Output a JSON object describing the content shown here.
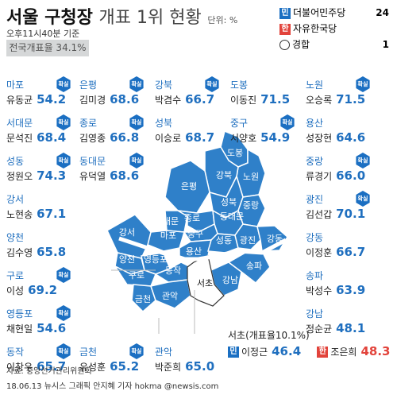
{
  "header": {
    "title_bold": "서울 구청장",
    "title_rest": "개표 1위 현황",
    "unit": "단위: %",
    "time": "오후11시40분 기준",
    "rate_label": "전국개표율 34.1%"
  },
  "legend": [
    {
      "badge": "민",
      "party": "더불어민주당",
      "count": "24",
      "color": "#1b6fc2"
    },
    {
      "badge": "한",
      "party": "자유한국당",
      "count": "",
      "color": "#e2433b"
    },
    {
      "badge": "",
      "party": "경합",
      "count": "1",
      "color": ""
    }
  ],
  "sure_label": "확실",
  "districts": [
    {
      "name": "마포",
      "candidate": "유동균",
      "pct": "54.2",
      "sure": true
    },
    {
      "name": "은평",
      "candidate": "김미경",
      "pct": "68.6",
      "sure": true
    },
    {
      "name": "강북",
      "candidate": "박겸수",
      "pct": "66.7",
      "sure": true
    },
    {
      "name": "도봉",
      "candidate": "이동진",
      "pct": "71.5",
      "sure": false
    },
    {
      "name": "노원",
      "candidate": "오승록",
      "pct": "71.5",
      "sure": true
    },
    {
      "name": "서대문",
      "candidate": "문석진",
      "pct": "68.4",
      "sure": true
    },
    {
      "name": "종로",
      "candidate": "김영종",
      "pct": "66.8",
      "sure": true
    },
    {
      "name": "성북",
      "candidate": "이승로",
      "pct": "68.7",
      "sure": false
    },
    {
      "name": "중구",
      "candidate": "서양호",
      "pct": "54.9",
      "sure": true
    },
    {
      "name": "용산",
      "candidate": "성장현",
      "pct": "64.6",
      "sure": false
    },
    {
      "name": "성동",
      "candidate": "정원오",
      "pct": "74.3",
      "sure": true
    },
    {
      "name": "동대문",
      "candidate": "유덕열",
      "pct": "68.6",
      "sure": true
    },
    {
      "name": "중랑",
      "candidate": "류경기",
      "pct": "66.0",
      "sure": true
    },
    {
      "name": "강서",
      "candidate": "노현송",
      "pct": "67.1",
      "sure": false
    },
    {
      "name": "광진",
      "candidate": "김선갑",
      "pct": "70.1",
      "sure": true
    },
    {
      "name": "양천",
      "candidate": "김수영",
      "pct": "65.8",
      "sure": false
    },
    {
      "name": "강동",
      "candidate": "이정훈",
      "pct": "66.7",
      "sure": false
    },
    {
      "name": "구로",
      "candidate": "이성",
      "pct": "69.2",
      "sure": true
    },
    {
      "name": "송파",
      "candidate": "박성수",
      "pct": "63.9",
      "sure": false
    },
    {
      "name": "영등포",
      "candidate": "채현일",
      "pct": "54.6",
      "sure": true
    },
    {
      "name": "강남",
      "candidate": "정순균",
      "pct": "48.1",
      "sure": false
    },
    {
      "name": "동작",
      "candidate": "이창우",
      "pct": "65.7",
      "sure": true
    },
    {
      "name": "금천",
      "candidate": "유성훈",
      "pct": "65.2",
      "sure": true
    },
    {
      "name": "관악",
      "candidate": "박준희",
      "pct": "65.0",
      "sure": false
    }
  ],
  "seocho": {
    "title": "서초(개표율10.1%)",
    "dem_badge": "민",
    "dem_name": "이정근",
    "dem_pct": "46.4",
    "lib_badge": "한",
    "lib_name": "조은희",
    "lib_pct": "48.3"
  },
  "map_labels": [
    "도봉",
    "노원",
    "강북",
    "은평",
    "성북",
    "중랑",
    "서대문",
    "종로",
    "동대문",
    "마포",
    "중구",
    "강서",
    "양천",
    "영등포",
    "용산",
    "성동",
    "광진",
    "강동",
    "구로",
    "동작",
    "서초",
    "강남",
    "송파",
    "금천",
    "관악"
  ],
  "footer": {
    "source": "자료: 중앙선거관리위원회",
    "credit": "18.06.13 뉴시스 그래픽 안지혜 기자 hokma @newsis.com"
  },
  "colors": {
    "dem": "#1b6fc2",
    "lib": "#e2433b",
    "map_dem": "#2f80c9",
    "map_tossup": "#ffffff"
  }
}
